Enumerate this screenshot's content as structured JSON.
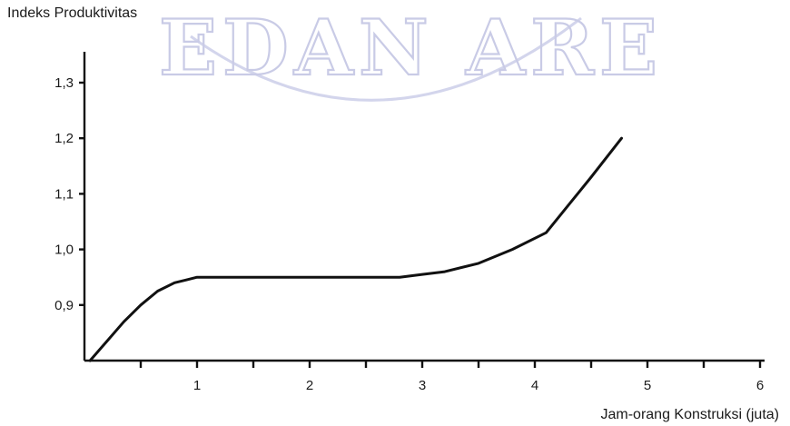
{
  "chart_data": {
    "type": "line",
    "ylabel": "Indeks Produktivitas",
    "xlabel": "Jam-orang Konstruksi (juta)",
    "xlim": [
      0,
      6
    ],
    "ylim": [
      0.8,
      1.35
    ],
    "xticks": [
      1,
      2,
      3,
      4,
      5,
      6
    ],
    "xtick_labels": [
      "1",
      "2",
      "3",
      "4",
      "5",
      "6"
    ],
    "yticks": [
      0.9,
      1.0,
      1.1,
      1.2,
      1.3
    ],
    "ytick_labels": [
      "0,9",
      "1,0",
      "1,1",
      "1,2",
      "1,3"
    ],
    "grid": false,
    "series": [
      {
        "x": [
          0.05,
          0.2,
          0.35,
          0.5,
          0.65,
          0.8,
          0.9,
          1.0,
          1.5,
          2.0,
          2.5,
          2.8,
          3.0,
          3.2,
          3.5,
          3.8,
          4.1,
          4.3,
          4.5,
          4.77
        ],
        "y": [
          0.8,
          0.835,
          0.87,
          0.9,
          0.925,
          0.94,
          0.945,
          0.95,
          0.95,
          0.95,
          0.95,
          0.95,
          0.955,
          0.96,
          0.975,
          1.0,
          1.03,
          1.08,
          1.13,
          1.2
        ]
      }
    ]
  },
  "watermark": {
    "text": "EDAN ARE"
  }
}
